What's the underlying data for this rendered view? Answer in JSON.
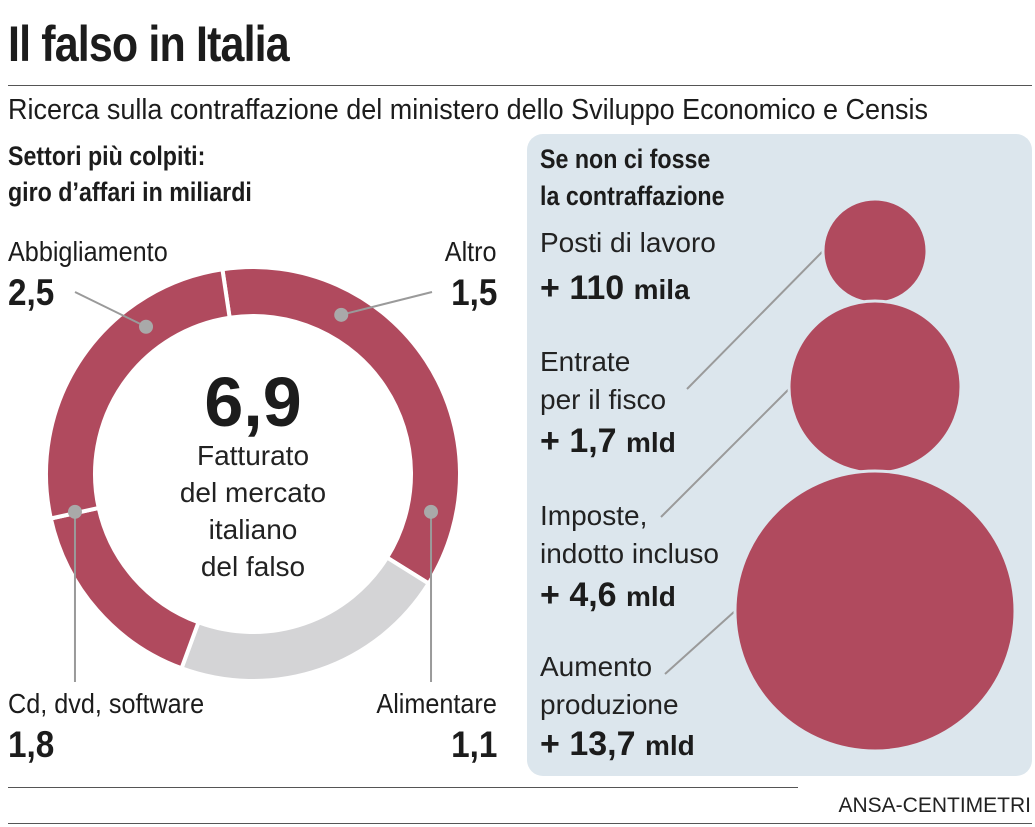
{
  "header": {
    "title": "Il falso in Italia",
    "subtitle": "Ricerca sulla contraffazione del ministero dello Sviluppo Economico e Censis"
  },
  "donut": {
    "heading_line1": "Settori più colpiti:",
    "heading_line2": "giro d’affari in miliardi",
    "total_value": "6,9",
    "center_lines": [
      "Fatturato",
      "del mercato",
      "italiano",
      "del falso"
    ]
  },
  "impact": {
    "heading_line1": "Se non ci fosse",
    "heading_line2": "la contraffazione",
    "items": [
      {
        "label_lines": [
          "Posti di lavoro"
        ],
        "prefix": "+ ",
        "number": "110",
        "unit": "mila"
      },
      {
        "label_lines": [
          "Entrate",
          "per il fisco"
        ],
        "prefix": "+ ",
        "number": "1,7",
        "unit": "mld"
      },
      {
        "label_lines": [
          "Imposte,",
          "indotto incluso"
        ],
        "prefix": "+ ",
        "number": "4,6",
        "unit": "mld"
      },
      {
        "label_lines": [
          "Aumento",
          "produzione"
        ],
        "prefix": "+ ",
        "number": "13,7",
        "unit": "mld"
      }
    ]
  },
  "credit": "ANSA-CENTIMETRI",
  "colors": {
    "accent": "#b04a5e",
    "secondary": "#d4d4d6",
    "panel": "#dce6ed",
    "leader": "#9a9a9a"
  },
  "chart_data": [
    {
      "type": "pie",
      "variant": "donut",
      "title": "Settori più colpiti: giro d’affari in miliardi",
      "total": 6.9,
      "total_label": "6,9",
      "categories": [
        "Abbigliamento",
        "Altro",
        "Alimentare",
        "Cd, dvd, software"
      ],
      "values": [
        2.5,
        1.5,
        1.1,
        1.8
      ],
      "value_labels": [
        "2,5",
        "1,5",
        "1,1",
        "1,8"
      ],
      "colors": [
        "#b04a5e",
        "#d4d4d6",
        "#b04a5e",
        "#b04a5e"
      ]
    },
    {
      "type": "bubble",
      "title": "Se non ci fosse la contraffazione",
      "categories": [
        "Posti di lavoro",
        "Entrate per il fisco",
        "Imposte, indotto incluso",
        "Aumento produzione"
      ],
      "values": [
        110,
        1.7,
        4.6,
        13.7
      ],
      "units": [
        "mila",
        "mld",
        "mld",
        "mld"
      ]
    }
  ]
}
